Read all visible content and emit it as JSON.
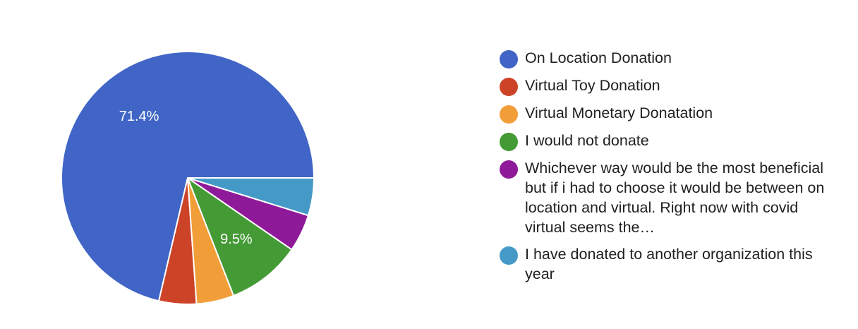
{
  "chart_data": {
    "type": "pie",
    "slices": [
      {
        "label": "On Location Donation",
        "value": 71.4,
        "display": "71.4%",
        "color": "#4065c6"
      },
      {
        "label": "Virtual Toy Donation",
        "value": 4.8,
        "display": "",
        "color": "#cc4328"
      },
      {
        "label": "Virtual Monetary Donatation",
        "value": 4.8,
        "display": "",
        "color": "#f29e38"
      },
      {
        "label": "I would not donate",
        "value": 9.5,
        "display": "9.5%",
        "color": "#449a35"
      },
      {
        "label": "Whichever way would be the most beneficial but if i had to choose it would be between on location and virtual. Right now with covid virtual seems the…",
        "value": 4.8,
        "display": "",
        "color": "#8e1a99"
      },
      {
        "label": "I have donated to another organization this year",
        "value": 4.8,
        "display": "",
        "color": "#4599c6"
      }
    ],
    "start_angle": "3 o'clock",
    "direction": "counter-clockwise",
    "legend_position": "right"
  }
}
